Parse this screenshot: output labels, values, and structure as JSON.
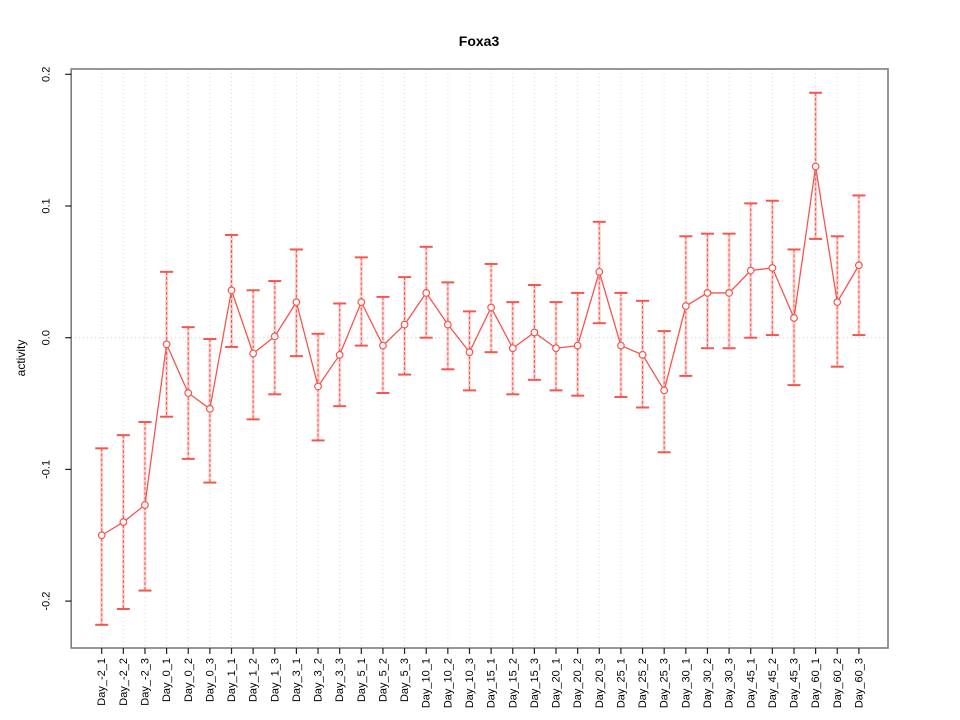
{
  "page": {
    "background": "#ffffff"
  },
  "chart_data": {
    "type": "line",
    "subtype": "points-with-error-bars",
    "title": "Foxa3",
    "xlabel": "",
    "ylabel": "activity",
    "legend": "none",
    "grid": "dotted vertical gridline at every category; dotted horizontal line at y=0",
    "ylim": [
      -0.235,
      0.203
    ],
    "y_ticks": [
      -0.2,
      -0.1,
      0.0,
      0.1,
      0.2
    ],
    "y_tick_labels": [
      "-0.2",
      "-0.1",
      "0.0",
      "0.1",
      "0.2"
    ],
    "zero_line": 0.0,
    "categories": [
      "Day_-2_1",
      "Day_-2_2",
      "Day_-2_3",
      "Day_0_1",
      "Day_0_2",
      "Day_0_3",
      "Day_1_1",
      "Day_1_2",
      "Day_1_3",
      "Day_3_1",
      "Day_3_2",
      "Day_3_3",
      "Day_5_1",
      "Day_5_2",
      "Day_5_3",
      "Day_10_1",
      "Day_10_2",
      "Day_10_3",
      "Day_15_1",
      "Day_15_2",
      "Day_15_3",
      "Day_20_1",
      "Day_20_2",
      "Day_20_3",
      "Day_25_1",
      "Day_25_2",
      "Day_25_3",
      "Day_30_1",
      "Day_30_2",
      "Day_30_3",
      "Day_45_1",
      "Day_45_2",
      "Day_45_3",
      "Day_60_1",
      "Day_60_2",
      "Day_60_3"
    ],
    "series": [
      {
        "name": "activity",
        "marker": "open-circle",
        "values": [
          -0.15,
          -0.14,
          -0.127,
          -0.005,
          -0.042,
          -0.054,
          0.036,
          -0.012,
          0.001,
          0.027,
          -0.037,
          -0.013,
          0.027,
          -0.006,
          0.01,
          0.034,
          0.01,
          -0.011,
          0.023,
          -0.008,
          0.004,
          -0.008,
          -0.006,
          0.05,
          -0.006,
          -0.013,
          -0.04,
          0.024,
          0.034,
          0.034,
          0.051,
          0.053,
          0.015,
          0.13,
          0.027,
          0.055
        ],
        "ci_low": [
          -0.218,
          -0.206,
          -0.192,
          -0.06,
          -0.092,
          -0.11,
          -0.007,
          -0.062,
          -0.043,
          -0.014,
          -0.078,
          -0.052,
          -0.006,
          -0.042,
          -0.028,
          0.0,
          -0.024,
          -0.04,
          -0.011,
          -0.043,
          -0.032,
          -0.04,
          -0.044,
          0.011,
          -0.045,
          -0.053,
          -0.087,
          -0.029,
          -0.008,
          -0.008,
          0.0,
          0.002,
          -0.036,
          0.075,
          -0.022,
          0.002
        ],
        "ci_high": [
          -0.084,
          -0.074,
          -0.064,
          0.05,
          0.008,
          -0.001,
          0.078,
          0.036,
          0.043,
          0.067,
          0.003,
          0.026,
          0.061,
          0.031,
          0.046,
          0.069,
          0.042,
          0.02,
          0.056,
          0.027,
          0.04,
          0.027,
          0.034,
          0.088,
          0.034,
          0.028,
          0.005,
          0.077,
          0.079,
          0.079,
          0.102,
          0.104,
          0.067,
          0.186,
          0.077,
          0.108
        ]
      }
    ],
    "colors": {
      "point": "#f4564e",
      "line": "#f4564e",
      "error_bar": "#f4564e",
      "error_stem_fill": "#f9b0ac",
      "grid": "#d8d8d8",
      "zero_line": "#c6c6c6",
      "box": "#7d7d7d",
      "tick": "#222222",
      "text": "#000000"
    }
  }
}
